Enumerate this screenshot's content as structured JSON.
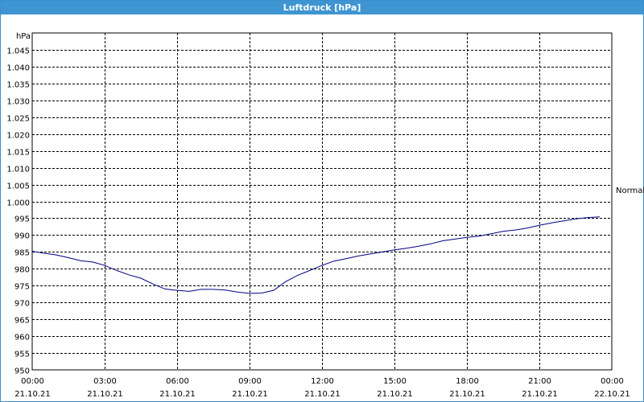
{
  "window": {
    "title": "Luftdruck [hPa]"
  },
  "chart_data": {
    "type": "line",
    "title": "Luftdruck [hPa]",
    "ylabel": "hPa",
    "ylim": [
      950,
      1050
    ],
    "y_ticks": [
      "1.045",
      "1.040",
      "1.035",
      "1.030",
      "1.025",
      "1.020",
      "1.015",
      "1.010",
      "1.005",
      "1.000",
      "995",
      "990",
      "985",
      "980",
      "975",
      "970",
      "965",
      "960",
      "955",
      "950"
    ],
    "y_tick_values": [
      1045,
      1040,
      1035,
      1030,
      1025,
      1020,
      1015,
      1010,
      1005,
      1000,
      995,
      990,
      985,
      980,
      975,
      970,
      965,
      960,
      955,
      950
    ],
    "x_ticks": [
      {
        "time": "00:00",
        "date": "21.10.21"
      },
      {
        "time": "03:00",
        "date": "21.10.21"
      },
      {
        "time": "06:00",
        "date": "21.10.21"
      },
      {
        "time": "09:00",
        "date": "21.10.21"
      },
      {
        "time": "12:00",
        "date": "21.10.21"
      },
      {
        "time": "15:00",
        "date": "21.10.21"
      },
      {
        "time": "18:00",
        "date": "21.10.21"
      },
      {
        "time": "21:00",
        "date": "21.10.21"
      },
      {
        "time": "00:00",
        "date": "22.10.21"
      }
    ],
    "reference_line": {
      "label": "Normal",
      "value": 1003.5
    },
    "grid": true,
    "series": [
      {
        "color": "#000080",
        "x_hours": [
          0,
          0.5,
          1,
          1.5,
          2,
          2.5,
          3,
          3.5,
          4,
          4.5,
          5,
          5.5,
          6,
          6.5,
          7,
          7.5,
          8,
          8.5,
          9,
          9.5,
          10,
          10.5,
          11,
          11.5,
          12,
          12.5,
          13,
          13.5,
          14,
          14.5,
          15,
          15.5,
          16,
          16.5,
          17,
          17.5,
          18,
          18.5,
          19,
          19.5,
          20,
          20.5,
          21,
          21.5,
          22,
          22.5,
          23,
          23.5
        ],
        "values": [
          985.2,
          984.6,
          984.1,
          983.3,
          982.4,
          982.0,
          981.0,
          979.5,
          978.2,
          977.2,
          975.5,
          974.0,
          973.6,
          973.3,
          973.9,
          973.9,
          973.7,
          973.1,
          972.7,
          972.8,
          973.6,
          976.2,
          978.1,
          979.5,
          981.0,
          982.3,
          983.0,
          983.8,
          984.4,
          985.0,
          985.6,
          986.1,
          986.7,
          987.4,
          988.3,
          988.8,
          989.3,
          989.7,
          990.4,
          991.1,
          991.5,
          992.1,
          992.9,
          993.6,
          994.2,
          994.8,
          995.2,
          995.4
        ]
      }
    ]
  }
}
